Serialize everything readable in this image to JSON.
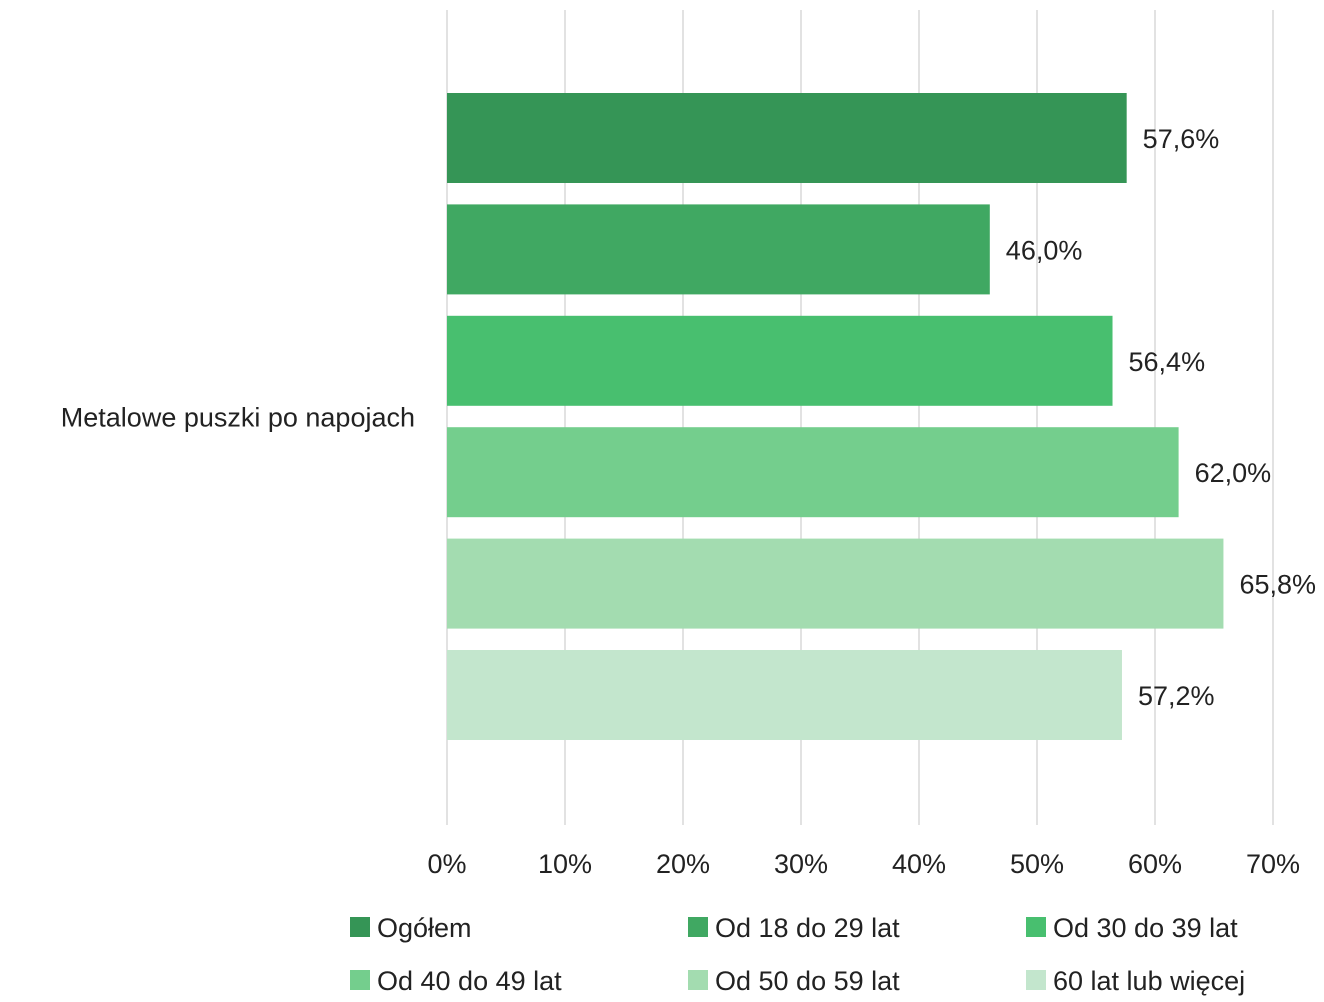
{
  "chart_data": {
    "type": "bar",
    "orientation": "horizontal",
    "categories": [
      "Metalowe puszki po napojach"
    ],
    "series": [
      {
        "name": "Ogółem",
        "values": [
          57.6
        ],
        "label": "57,6%",
        "color": "#359556"
      },
      {
        "name": "Od 18 do 29 lat",
        "values": [
          46.0
        ],
        "label": "46,0%",
        "color": "#40a862"
      },
      {
        "name": "Od 30 do 39 lat",
        "values": [
          56.4
        ],
        "label": "56,4%",
        "color": "#48bf6f"
      },
      {
        "name": "Od 40 do 49 lat",
        "values": [
          62.0
        ],
        "label": "62,0%",
        "color": "#74ce8d"
      },
      {
        "name": "Od 50 do 59 lat",
        "values": [
          65.8
        ],
        "label": "65,8%",
        "color": "#a3dcb0"
      },
      {
        "name": "60 lat lub więcej",
        "values": [
          57.2
        ],
        "label": "57,2%",
        "color": "#c3e6cd"
      }
    ],
    "xlim": [
      0,
      70
    ],
    "x_ticks": [
      0,
      10,
      20,
      30,
      40,
      50,
      60,
      70
    ],
    "x_tick_labels": [
      "0%",
      "10%",
      "20%",
      "30%",
      "40%",
      "50%",
      "60%",
      "70%"
    ],
    "grid": true,
    "legend_position": "bottom"
  }
}
